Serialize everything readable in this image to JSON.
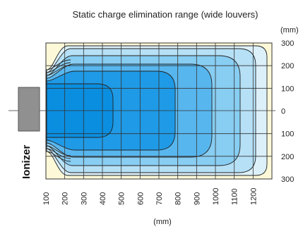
{
  "chart_data": {
    "type": "heatmap",
    "title": "Static charge elimination range (wide louvers)",
    "x_unit": "(mm)",
    "y_unit": "(mm)",
    "x_ticks": [
      "100",
      "200",
      "300",
      "400",
      "500",
      "600",
      "700",
      "800",
      "900",
      "1000",
      "1100",
      "1200"
    ],
    "y_ticks_upper": [
      "300",
      "200",
      "100"
    ],
    "y_tick_center": "0",
    "y_ticks_lower": [
      "100",
      "200",
      "300"
    ],
    "ionizer_label": "Ionizer",
    "xlim": [
      0,
      1200
    ],
    "ylim": [
      -300,
      300
    ],
    "grid": true,
    "colors": {
      "background": "#fdf8d8",
      "levels": [
        "#dcf0fa",
        "#b6e0f6",
        "#88cdf2",
        "#58b6ee",
        "#1f9ae6",
        "#0a8ee0"
      ],
      "ionizer": "#909090"
    }
  }
}
